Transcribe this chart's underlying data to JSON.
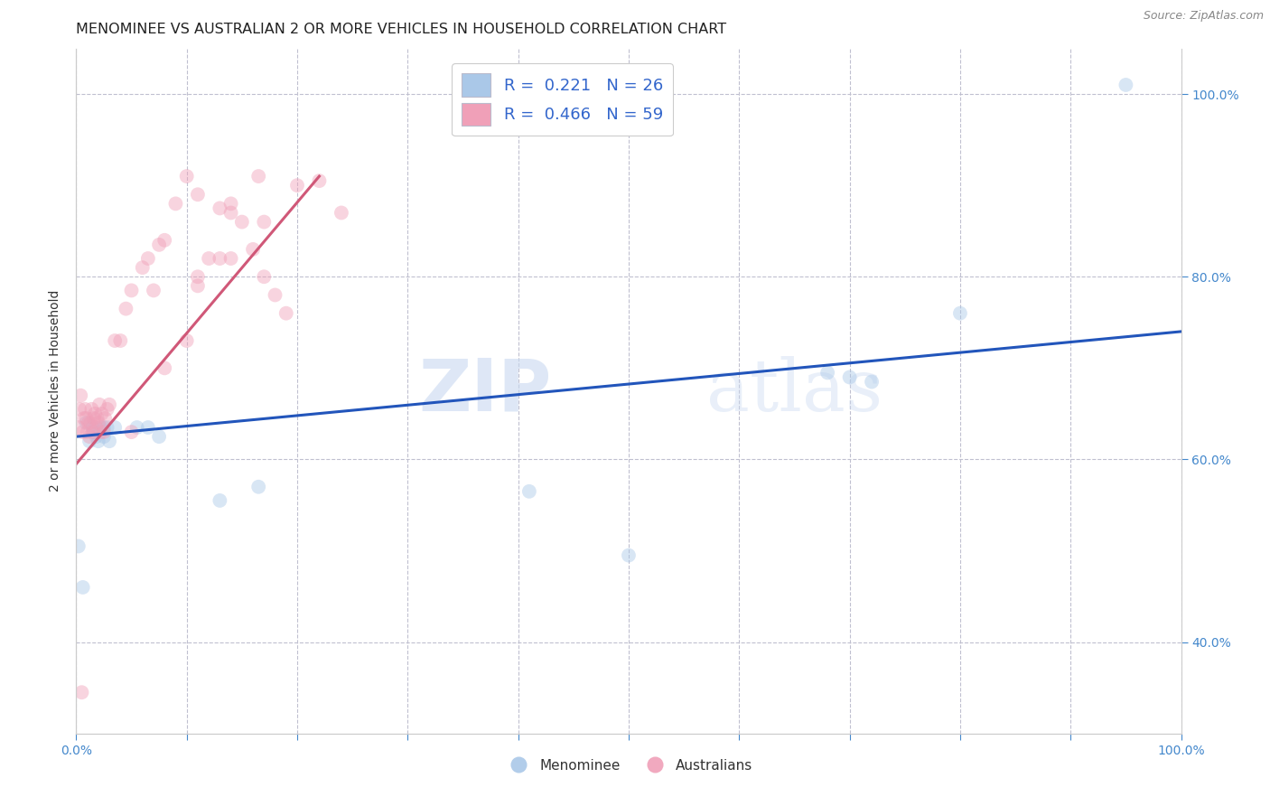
{
  "title": "MENOMINEE VS AUSTRALIAN 2 OR MORE VEHICLES IN HOUSEHOLD CORRELATION CHART",
  "source": "Source: ZipAtlas.com",
  "ylabel": "2 or more Vehicles in Household",
  "xlim": [
    0.0,
    1.0
  ],
  "ylim": [
    0.3,
    1.05
  ],
  "watermark_zip": "ZIP",
  "watermark_atlas": "atlas",
  "legend_label1": "Menominee",
  "legend_label2": "Australians",
  "blue_scatter_x": [
    0.002,
    0.006,
    0.009,
    0.012,
    0.015,
    0.016,
    0.018,
    0.02,
    0.022,
    0.025,
    0.025,
    0.028,
    0.03,
    0.035,
    0.055,
    0.065,
    0.075,
    0.13,
    0.165,
    0.41,
    0.5,
    0.68,
    0.7,
    0.72,
    0.8,
    0.95
  ],
  "blue_scatter_y": [
    0.505,
    0.46,
    0.64,
    0.62,
    0.635,
    0.63,
    0.625,
    0.62,
    0.635,
    0.635,
    0.625,
    0.635,
    0.62,
    0.635,
    0.635,
    0.635,
    0.625,
    0.555,
    0.57,
    0.565,
    0.495,
    0.695,
    0.69,
    0.685,
    0.76,
    1.01
  ],
  "pink_scatter_x": [
    0.002,
    0.003,
    0.004,
    0.006,
    0.007,
    0.008,
    0.009,
    0.01,
    0.011,
    0.012,
    0.013,
    0.014,
    0.015,
    0.016,
    0.017,
    0.018,
    0.019,
    0.02,
    0.021,
    0.022,
    0.023,
    0.025,
    0.026,
    0.028,
    0.03,
    0.035,
    0.04,
    0.045,
    0.05,
    0.06,
    0.065,
    0.07,
    0.075,
    0.08,
    0.09,
    0.1,
    0.11,
    0.13,
    0.14,
    0.15,
    0.16,
    0.17,
    0.18,
    0.19,
    0.05,
    0.08,
    0.11,
    0.14,
    0.17,
    0.2,
    0.22,
    0.24,
    0.1,
    0.11,
    0.12,
    0.13,
    0.14,
    0.165,
    0.005
  ],
  "pink_scatter_y": [
    0.635,
    0.655,
    0.67,
    0.63,
    0.645,
    0.655,
    0.645,
    0.63,
    0.64,
    0.625,
    0.64,
    0.655,
    0.63,
    0.645,
    0.65,
    0.635,
    0.645,
    0.64,
    0.66,
    0.63,
    0.65,
    0.63,
    0.645,
    0.655,
    0.66,
    0.73,
    0.73,
    0.765,
    0.785,
    0.81,
    0.82,
    0.785,
    0.835,
    0.84,
    0.88,
    0.91,
    0.89,
    0.875,
    0.87,
    0.86,
    0.83,
    0.8,
    0.78,
    0.76,
    0.63,
    0.7,
    0.8,
    0.82,
    0.86,
    0.9,
    0.905,
    0.87,
    0.73,
    0.79,
    0.82,
    0.82,
    0.88,
    0.91,
    0.345
  ],
  "blue_line_x": [
    0.0,
    1.0
  ],
  "blue_line_y": [
    0.625,
    0.74
  ],
  "pink_line_x": [
    0.0,
    0.22
  ],
  "pink_line_y": [
    0.595,
    0.91
  ],
  "scatter_size": 130,
  "scatter_alpha": 0.45,
  "blue_color": "#aac8e8",
  "pink_color": "#f0a0b8",
  "blue_line_color": "#2255bb",
  "pink_line_color": "#d05878",
  "title_fontsize": 11.5,
  "axis_label_fontsize": 10,
  "tick_fontsize": 10,
  "legend_fontsize": 13,
  "grid_color": "#c0c0d0",
  "background_color": "#ffffff"
}
